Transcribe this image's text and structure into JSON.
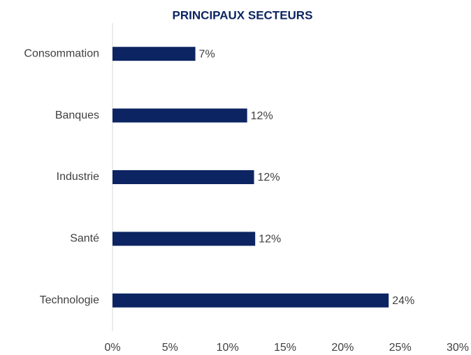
{
  "chart_data": {
    "type": "bar",
    "orientation": "horizontal",
    "title": "PRINCIPAUX SECTEURS",
    "categories": [
      "Consommation",
      "Banques",
      "Industrie",
      "Santé",
      "Technologie"
    ],
    "values": [
      7.2,
      11.7,
      12.3,
      12.4,
      24.0
    ],
    "value_labels": [
      "7%",
      "12%",
      "12%",
      "12%",
      "24%"
    ],
    "color": "#0c2461",
    "xlim": [
      0,
      30
    ],
    "xticks": [
      {
        "value": 0,
        "label": "0%"
      },
      {
        "value": 5,
        "label": "5%"
      },
      {
        "value": 10,
        "label": "10%"
      },
      {
        "value": 15,
        "label": "15%"
      },
      {
        "value": 20,
        "label": "20%"
      },
      {
        "value": 25,
        "label": "25%"
      },
      {
        "value": 30,
        "label": "30%"
      }
    ],
    "grid": false
  }
}
